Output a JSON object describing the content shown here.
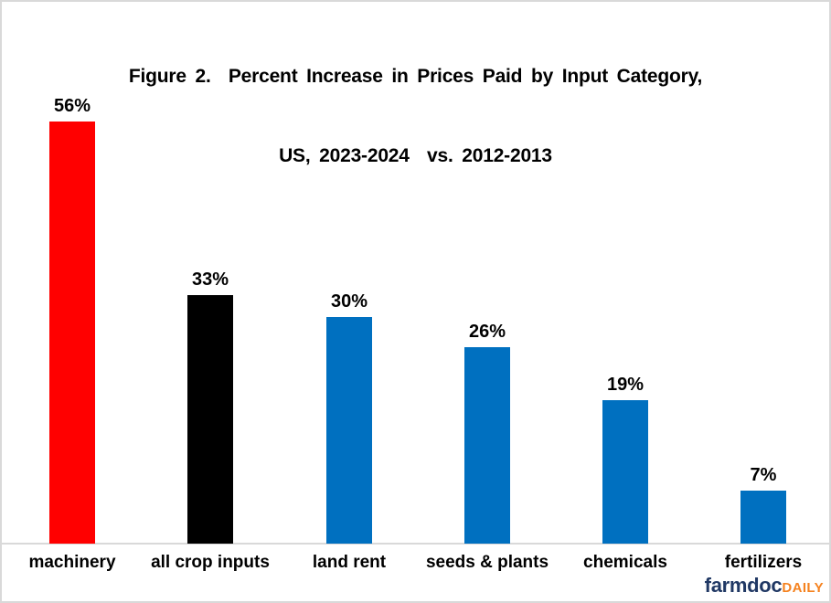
{
  "figure": {
    "title_line1": "Figure 2.  Percent Increase in Prices Paid by Input Category,",
    "title_line2": "US, 2023-2024  vs. 2012-2013"
  },
  "chart_data": {
    "type": "bar",
    "title": "Figure 2. Percent Increase in Prices Paid by Input Category, US, 2023-2024 vs. 2012-2013",
    "categories": [
      "machinery",
      "all crop inputs",
      "land rent",
      "seeds & plants",
      "chemicals",
      "fertilizers"
    ],
    "values": [
      56,
      33,
      30,
      26,
      19,
      7
    ],
    "value_labels": [
      "56%",
      "33%",
      "30%",
      "26%",
      "19%",
      "7%"
    ],
    "bar_colors": [
      "#ff0000",
      "#000000",
      "#0070c0",
      "#0070c0",
      "#0070c0",
      "#0070c0"
    ],
    "xlabel": "",
    "ylabel": "",
    "ylim": [
      0,
      60
    ],
    "grid": false,
    "legend": false,
    "y_axis_visible": false,
    "baseline_color": "#d9d9d9"
  },
  "branding": {
    "name": "farmdoc",
    "suffix": "DAILY",
    "name_color": "#203864",
    "suffix_color": "#f5821f"
  }
}
